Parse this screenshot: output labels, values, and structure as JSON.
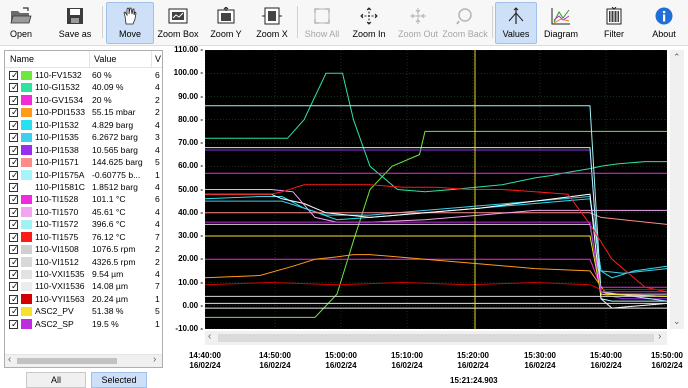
{
  "toolbar": {
    "open": "Open",
    "save_as": "Save as",
    "move": "Move",
    "zoom_box": "Zoom Box",
    "zoom_y": "Zoom Y",
    "zoom_x": "Zoom X",
    "show_all": "Show All",
    "zoom_in": "Zoom In",
    "zoom_out": "Zoom Out",
    "zoom_back": "Zoom Back",
    "values": "Values",
    "diagram": "Diagram",
    "filter": "Filter",
    "about": "About"
  },
  "list": {
    "col_name": "Name",
    "col_value": "Value",
    "col_extra": "V",
    "items": [
      {
        "name": "110-FV1532",
        "value": "60 %",
        "extra": "6",
        "color": "#6de83c"
      },
      {
        "name": "110-GI1532",
        "value": "40.09 %",
        "extra": "4",
        "color": "#2ee3a0"
      },
      {
        "name": "110-GV1534",
        "value": "20 %",
        "extra": "2",
        "color": "#f22ad8"
      },
      {
        "name": "110-PDI1533",
        "value": "55.15 mbar",
        "extra": "2",
        "color": "#ff9a1a"
      },
      {
        "name": "110-PI1532",
        "value": "4.829 barg",
        "extra": "4",
        "color": "#28e0f0"
      },
      {
        "name": "110-PI1535",
        "value": "6.2672 barg",
        "extra": "3",
        "color": "#3cd0f0"
      },
      {
        "name": "110-PI1538",
        "value": "10.565 barg",
        "extra": "4",
        "color": "#9a2ef0"
      },
      {
        "name": "110-PI1571",
        "value": "144.625 barg",
        "extra": "5",
        "color": "#ff8a8a"
      },
      {
        "name": "110-PI1575A",
        "value": "-0.60775 b...",
        "extra": "1",
        "color": "#a6f4fa"
      },
      {
        "name": "110-PI1581C",
        "value": "1.8512 barg",
        "extra": "4",
        "color": "#ffffff"
      },
      {
        "name": "110-TI1528",
        "value": "101.1 °C",
        "extra": "6",
        "color": "#f02ae0"
      },
      {
        "name": "110-TI1570",
        "value": "45.61 °C",
        "extra": "4",
        "color": "#f2a6f0"
      },
      {
        "name": "110-TI1572",
        "value": "396.6 °C",
        "extra": "4",
        "color": "#a0f2f4"
      },
      {
        "name": "110-TI1575",
        "value": "76.12 °C",
        "extra": "7",
        "color": "#ff1a1a"
      },
      {
        "name": "110-VI1508",
        "value": "1076.5 rpm",
        "extra": "2",
        "color": "#cfcfcf"
      },
      {
        "name": "110-VI1512",
        "value": "4326.5 rpm",
        "extra": "2",
        "color": "#d8d8d8"
      },
      {
        "name": "110-VXI1535",
        "value": "9.54 µm",
        "extra": "4",
        "color": "#e2e2e2"
      },
      {
        "name": "110-VXI1536",
        "value": "14.08 µm",
        "extra": "7",
        "color": "#ececec"
      },
      {
        "name": "110-VYI1563",
        "value": "20.24 µm",
        "extra": "1",
        "color": "#d40000"
      },
      {
        "name": "ASC2_PV",
        "value": "51.38 %",
        "extra": "5",
        "color": "#f7e12a"
      },
      {
        "name": "ASC2_SP",
        "value": "19.5 %",
        "extra": "1",
        "color": "#c02ae0"
      }
    ]
  },
  "panel_buttons": {
    "all": "All",
    "selected": "Selected"
  },
  "chart_data": {
    "type": "line",
    "ylim": [
      -10,
      110
    ],
    "y_ticks": [
      "110.00 -",
      "100.00 -",
      "90.00 -",
      "80.00 -",
      "70.00 -",
      "60.00 -",
      "50.00 -",
      "40.00 -",
      "30.00 -",
      "20.00 -",
      "10.00 -",
      "0.00 -",
      "-10.00 -"
    ],
    "x_ticks": [
      {
        "time": "14:40:00",
        "date": "16/02/24"
      },
      {
        "time": "14:50:00",
        "date": "16/02/24"
      },
      {
        "time": "15:00:00",
        "date": "16/02/24"
      },
      {
        "time": "15:10:00",
        "date": "16/02/24"
      },
      {
        "time": "15:20:00",
        "date": "16/02/24"
      },
      {
        "time": "15:30:00",
        "date": "16/02/24"
      },
      {
        "time": "15:40:00",
        "date": "16/02/24"
      },
      {
        "time": "15:50:00",
        "date": "16/02/24"
      }
    ],
    "cursor_time": "15:21:24.903",
    "cursor_color": "#e8d82a",
    "grid": true,
    "background": "#000000",
    "series": [
      {
        "name": "110-FV1532",
        "color": "#6de83c",
        "x": [
          0,
          11,
          20,
          24,
          27,
          30,
          34,
          39,
          40,
          48,
          60,
          70,
          84
        ],
        "y": [
          -5,
          -5,
          -5,
          5,
          28,
          50,
          60,
          65,
          75,
          75,
          75,
          75,
          75
        ]
      },
      {
        "name": "110-GI1532",
        "color": "#2ee3a0",
        "x": [
          0,
          12,
          15,
          18,
          20,
          22,
          25,
          27,
          30,
          35,
          40,
          45,
          54,
          56,
          60,
          63,
          65,
          70,
          72,
          75,
          80,
          84
        ],
        "y": [
          72,
          72,
          72,
          80,
          90,
          100,
          100,
          80,
          60,
          50,
          49,
          50,
          52,
          53,
          55,
          56,
          57,
          59,
          60,
          61,
          62,
          62
        ]
      },
      {
        "name": "110-GV1534",
        "color": "#f22ad8",
        "x": [
          0,
          20,
          40,
          55,
          70,
          72,
          84
        ],
        "y": [
          20,
          20,
          20,
          20,
          20,
          8,
          8
        ]
      },
      {
        "name": "110-PDI1533",
        "color": "#ff9a1a",
        "x": [
          0,
          10,
          16,
          20,
          24,
          27,
          30,
          35,
          40,
          50,
          60,
          70,
          73,
          84
        ],
        "y": [
          12,
          13,
          17,
          20,
          21,
          22,
          22,
          21,
          20,
          18,
          16,
          15,
          5,
          4
        ]
      },
      {
        "name": "110-PI1532",
        "color": "#28e0f0",
        "x": [
          0,
          10,
          14,
          18,
          24,
          30,
          40,
          50,
          60,
          70,
          72,
          74,
          78,
          84
        ],
        "y": [
          46,
          47,
          47,
          42,
          37,
          38,
          40,
          42,
          44,
          46,
          15,
          12,
          15,
          17
        ]
      },
      {
        "name": "110-PI1535",
        "color": "#3cd0f0",
        "x": [
          0,
          14,
          18,
          22,
          30,
          40,
          50,
          60,
          70,
          72,
          76,
          84
        ],
        "y": [
          45,
          45,
          42,
          39,
          39,
          41,
          43,
          45,
          47,
          15,
          14,
          16
        ]
      },
      {
        "name": "110-PI1538",
        "color": "#9a2ef0",
        "x": [
          0,
          12,
          24,
          36,
          48,
          60,
          66,
          70,
          72,
          76,
          84
        ],
        "y": [
          67,
          67,
          67,
          67,
          67,
          67,
          67,
          67,
          5,
          3,
          3
        ]
      },
      {
        "name": "110-PI1571",
        "color": "#ff8a8a",
        "x": [
          0,
          12,
          24,
          36,
          48,
          60,
          70,
          72,
          84
        ],
        "y": [
          40,
          40,
          40,
          40,
          40,
          40,
          40,
          38,
          35
        ]
      },
      {
        "name": "110-PI1575A",
        "color": "#a6f4fa",
        "x": [
          0,
          12,
          24,
          36,
          48,
          60,
          70,
          72,
          74,
          84
        ],
        "y": [
          68,
          68,
          68,
          68,
          68,
          68,
          68,
          3,
          2,
          2
        ]
      },
      {
        "name": "110-PI1581C",
        "color": "#ffffff",
        "x": [
          0,
          12,
          14,
          18,
          22,
          30,
          40,
          50,
          60,
          70,
          72,
          74,
          84
        ],
        "y": [
          48,
          48,
          46,
          44,
          40,
          38,
          40,
          42,
          45,
          48,
          3,
          -1,
          1
        ]
      },
      {
        "name": "110-TI1528",
        "color": "#f02ae0",
        "x": [
          0,
          12,
          24,
          36,
          48,
          60,
          70,
          84
        ],
        "y": [
          57,
          57,
          57,
          57,
          57,
          57,
          57,
          57
        ]
      },
      {
        "name": "110-TI1570",
        "color": "#f2a6f0",
        "x": [
          0,
          10,
          12,
          16,
          20,
          24,
          30,
          40,
          50,
          60,
          70,
          84
        ],
        "y": [
          50,
          50,
          50,
          49,
          38,
          36,
          36,
          37,
          39,
          41,
          41,
          41
        ]
      },
      {
        "name": "110-TI1572",
        "color": "#a0f2f4",
        "x": [
          0,
          12,
          24,
          36,
          48,
          60,
          70,
          72,
          84
        ],
        "y": [
          86,
          86,
          86,
          86,
          86,
          86,
          86,
          6,
          2
        ]
      },
      {
        "name": "110-TI1575",
        "color": "#ff1a1a",
        "x": [
          0,
          12,
          14,
          18,
          24,
          30,
          36,
          42,
          48,
          54,
          60,
          66,
          70,
          74,
          80,
          84
        ],
        "y": [
          48,
          48,
          49,
          52,
          52,
          52,
          51,
          51,
          50,
          50,
          49,
          48,
          35,
          20,
          8,
          6
        ]
      },
      {
        "name": "110-VI1508",
        "color": "#cfcfcf",
        "x": [
          0,
          12,
          24,
          36,
          48,
          60,
          70,
          72,
          74,
          84
        ],
        "y": [
          35,
          35,
          35,
          35,
          35,
          35,
          35,
          6,
          5,
          5
        ]
      },
      {
        "name": "110-VI1512",
        "color": "#d8d8d8",
        "x": [
          0,
          12,
          24,
          36,
          48,
          60,
          70,
          84
        ],
        "y": [
          4,
          4,
          4,
          4,
          4,
          4,
          4,
          4
        ]
      },
      {
        "name": "110-VXI1535",
        "color": "#e2e2e2",
        "x": [
          0,
          12,
          24,
          36,
          48,
          60,
          70,
          84
        ],
        "y": [
          1,
          1,
          1,
          1,
          1,
          1,
          1,
          1
        ]
      },
      {
        "name": "110-VXI1536",
        "color": "#ececec",
        "x": [
          0,
          12,
          24,
          36,
          48,
          60,
          70,
          84
        ],
        "y": [
          -1,
          -1,
          -1,
          -1,
          -1,
          -1,
          -1,
          -1
        ]
      },
      {
        "name": "110-VYI1563",
        "color": "#d40000",
        "x": [
          0,
          12,
          24,
          36,
          48,
          60,
          70,
          72,
          84
        ],
        "y": [
          9,
          10,
          9,
          10,
          9,
          10,
          9,
          7,
          7
        ]
      },
      {
        "name": "ASC2_PV",
        "color": "#f7e12a",
        "x": [
          0,
          20,
          40,
          60,
          70,
          72,
          84
        ],
        "y": [
          30,
          30,
          30,
          30,
          30,
          5,
          4
        ]
      },
      {
        "name": "ASC2_SP",
        "color": "#c02ae0",
        "x": [
          0,
          20,
          40,
          60,
          70,
          72,
          84
        ],
        "y": [
          36,
          36,
          36,
          36,
          36,
          6,
          6
        ]
      }
    ]
  }
}
